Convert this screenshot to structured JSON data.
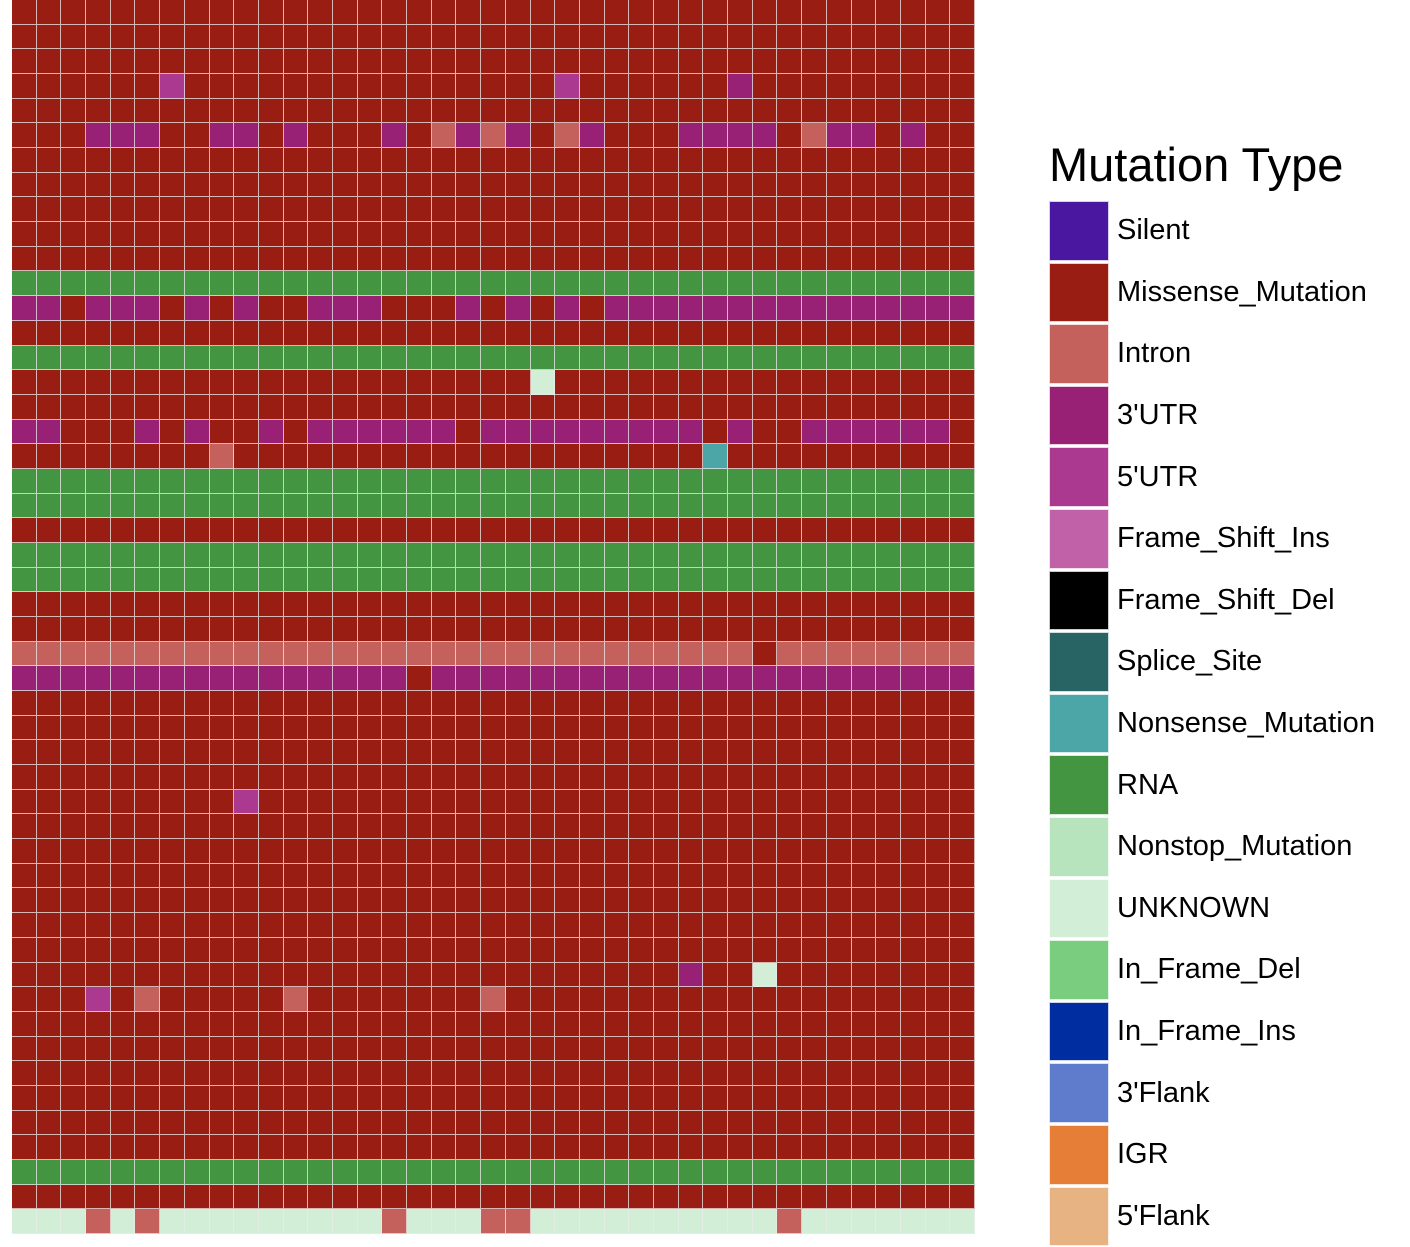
{
  "chart_data": {
    "type": "heatmap",
    "title": "",
    "xlabel": "",
    "ylabel": "",
    "n_cols": 39,
    "n_rows": 50,
    "legend": {
      "title": "Mutation Type",
      "position": "right",
      "entries": [
        {
          "code": "S",
          "label": "Silent",
          "color": "#4a17a1"
        },
        {
          "code": "M",
          "label": "Missense_Mutation",
          "color": "#9a1d13"
        },
        {
          "code": "I",
          "label": "Intron",
          "color": "#c5615c"
        },
        {
          "code": "U",
          "label": "3'UTR",
          "color": "#982175"
        },
        {
          "code": "F",
          "label": "5'UTR",
          "color": "#ab398f"
        },
        {
          "code": "P",
          "label": "Frame_Shift_Ins",
          "color": "#c161a8"
        },
        {
          "code": "D",
          "label": "Frame_Shift_Del",
          "color": "#000000"
        },
        {
          "code": "T",
          "label": "Splice_Site",
          "color": "#296464"
        },
        {
          "code": "N",
          "label": "Nonsense_Mutation",
          "color": "#4ca6a7"
        },
        {
          "code": "R",
          "label": "RNA",
          "color": "#439542"
        },
        {
          "code": "O",
          "label": "Nonstop_Mutation",
          "color": "#b7e3bd"
        },
        {
          "code": "K",
          "label": "UNKNOWN",
          "color": "#d3eed6"
        },
        {
          "code": "L",
          "label": "In_Frame_Del",
          "color": "#7acd7f"
        },
        {
          "code": "J",
          "label": "In_Frame_Ins",
          "color": "#002ea1"
        },
        {
          "code": "A",
          "label": "3'Flank",
          "color": "#5f7bcb"
        },
        {
          "code": "G",
          "label": "IGR",
          "color": "#e67e37"
        },
        {
          "code": "B",
          "label": "5'Flank",
          "color": "#e8b383"
        }
      ]
    },
    "rows": [
      "MMMMMMMMMMMMMMMMMMMMMMMMMMMMMMMMMMMMMMM",
      "MMMMMMMMMMMMMMMMMMMMMMMMMMMMMMMMMMMMMMM",
      "MMMMMMMMMMMMMMMMMMMMMMMMMMMMMMMMMMMMMMM",
      "MMMMMMFMMMMMMMMMMMMMMMFMMMMMMUMMMMMMMMM",
      "MMMMMMMMMMMMMMMMMMMMMMMMMMMMMMMMMMMMMMM",
      "MMMUUUMMUUMUMMMUMIUIUMIUMMMUUUUMIUUMUMM",
      "MMMMMMMMMMMMMMMMMMMMMMMMMMMMMMMMMMMMMMM",
      "MMMMMMMMMMMMMMMMMMMMMMMMMMMMMMMMMMMMMMM",
      "MMMMMMMMMMMMMMMMMMMMMMMMMMMMMMMMMMMMMMM",
      "MMMMMMMMMMMMMMMMMMMMMMMMMMMMMMMMMMMMMMM",
      "MMMMMMMMMMMMMMMMMMMMMMMMMMMMMMMMMMMMMMM",
      "RRRRRRRRRRRRRRRRRRRRRRRRRRRRRRRRRRRRRRR",
      "UUMUUUMUMUMMUUUMMMUMUMUMUUUUUUUUUUUUUUU",
      "MMMMMMMMMMMMMMMMMMMMMMMMMMMMMMMMMMMMMMM",
      "RRRRRRRRRRRRRRRRRRRRRRRRRRRRRRRRRRRRRRR",
      "MMMMMMMMMMMMMMMMMMMMMKMMMMMMMMMMMMMMMMM",
      "MMMMMMMMMMMMMMMMMMMMMMMMMMMMMMMMMMMMMMM",
      "UUMMMUMUMMUMUUUUUUMUUUUUUUUUMUMMUUUUUUM",
      "MMMMMMMMIMMMMMMMMMMMMMMMMMMMNMMMMMMMMMM",
      "RRRRRRRRRRRRRRRRRRRRRRRRRRRRRRRRRRRRRRR",
      "RRRRRRRRRRRRRRRRRRRRRRRRRRRRRRRRRRRRRRR",
      "MMMMMMMMMMMMMMMMMMMMMMMMMMMMMMMMMMMMMMM",
      "RRRRRRRRRRRRRRRRRRRRRRRRRRRRRRRRRRRRRRR",
      "RRRRRRRRRRRRRRRRRRRRRRRRRRRRRRRRRRRRRRR",
      "MMMMMMMMMMMMMMMMMMMMMMMMMMMMMMMMMMMMMMM",
      "MMMMMMMMMMMMMMMMMMMMMMMMMMMMMMMMMMMMMMM",
      "IIIIIIIIIIIIIIIIIIIIIIIIIIIIIIMIIIIIIII",
      "UUUUUUUUUUUUUUUUMUUUUUUUUUUUUUUUUUUUUUU",
      "MMMMMMMMMMMMMMMMMMMMMMMMMMMMMMMMMMMMMMM",
      "MMMMMMMMMMMMMMMMMMMMMMMMMMMMMMMMMMMMMMM",
      "MMMMMMMMMMMMMMMMMMMMMMMMMMMMMMMMMMMMMMM",
      "MMMMMMMMMMMMMMMMMMMMMMMMMMMMMMMMMMMMMMM",
      "MMMMMMMMMFMMMMMMMMMMMMMMMMMMMMMMMMMMMMM",
      "MMMMMMMMMMMMMMMMMMMMMMMMMMMMMMMMMMMMMMM",
      "MMMMMMMMMMMMMMMMMMMMMMMMMMMMMMMMMMMMMMM",
      "MMMMMMMMMMMMMMMMMMMMMMMMMMMMMMMMMMMMMMM",
      "MMMMMMMMMMMMMMMMMMMMMMMMMMMMMMMMMMMMMMM",
      "MMMMMMMMMMMMMMMMMMMMMMMMMMMMMMMMMMMMMMM",
      "MMMMMMMMMMMMMMMMMMMMMMMMMMMMMMMMMMMMMMM",
      "MMMMMMMMMMMMMMMMMMMMMMMMMMMUMMKMMMMMMMM",
      "MMMFMIMMMMMIMMMMMMMIMMMMMMMMMMMMMMMMMMM",
      "MMMMMMMMMMMMMMMMMMMMMMMMMMMMMMMMMMMMMMM",
      "MMMMMMMMMMMMMMMMMMMMMMMMMMMMMMMMMMMMMMM",
      "MMMMMMMMMMMMMMMMMMMMMMMMMMMMMMMMMMMMMMM",
      "MMMMMMMMMMMMMMMMMMMMMMMMMMMMMMMMMMMMMMM",
      "MMMMMMMMMMMMMMMMMMMMMMMMMMMMMMMMMMMMMMM",
      "MMMMMMMMMMMMMMMMMMMMMMMMMMMMMMMMMMMMMMM",
      "RRRRRRRRRRRRRRRRRRRRRRRRRRRRRRRRRRRRRRR",
      "MMMMMMMMMMMMMMMMMMMMMMMMMMMMMMMMMMMMMMM",
      "KKKIKIKKKKKKKKKIKKKIIKKKKKKKKKKIKKKKKKK"
    ]
  }
}
